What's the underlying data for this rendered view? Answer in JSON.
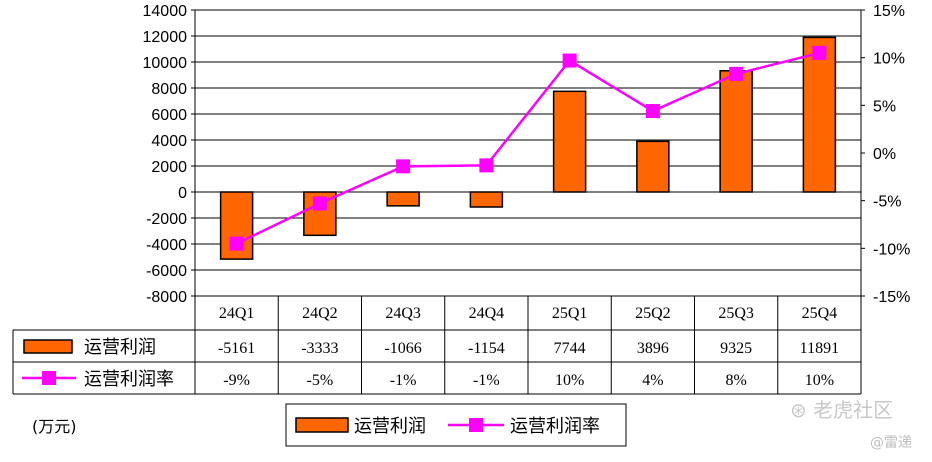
{
  "chart_data": {
    "type": "bar",
    "categories": [
      "24Q1",
      "24Q2",
      "24Q3",
      "24Q4",
      "25Q1",
      "25Q2",
      "25Q3",
      "25Q4"
    ],
    "series": [
      {
        "name": "运营利润",
        "type": "bar",
        "axis": "left",
        "values": [
          -5161,
          -3333,
          -1066,
          -1154,
          7744,
          3896,
          9325,
          11891
        ],
        "labels": [
          "-5161",
          "-3333",
          "-1066",
          "-1154",
          "7744",
          "3896",
          "9325",
          "11891"
        ]
      },
      {
        "name": "运营利润率",
        "type": "line",
        "axis": "right",
        "values": [
          -9.5,
          -5.3,
          -1.4,
          -1.3,
          9.7,
          4.4,
          8.3,
          10.5
        ],
        "labels": [
          "-9%",
          "-5%",
          "-1%",
          "-1%",
          "10%",
          "4%",
          "8%",
          "10%"
        ]
      }
    ],
    "y_left": {
      "min": -8000,
      "max": 14000,
      "step": 2000
    },
    "y_right": {
      "min": -15,
      "max": 15,
      "step": 5,
      "tick_labels": [
        "15%",
        "10%",
        "5%",
        "0%",
        "-5%",
        "-10%",
        "-15%"
      ]
    },
    "grid": true,
    "legend": "bottom-center",
    "unit_label": "(万元)",
    "colors": {
      "bar": "#ff6600",
      "line": "#ff00ff"
    }
  },
  "watermark": {
    "text": "老虎社区",
    "sub": "@雷递"
  }
}
